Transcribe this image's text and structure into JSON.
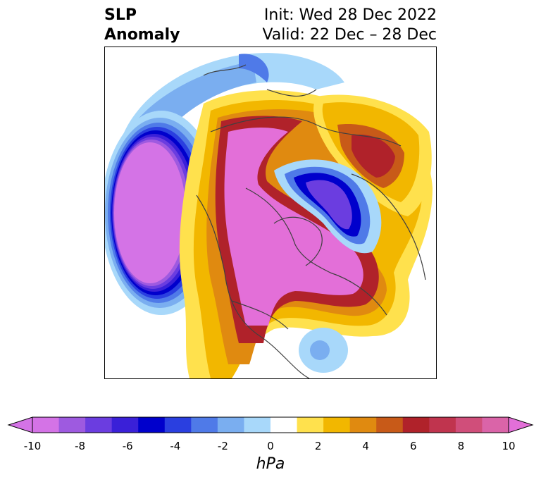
{
  "title": {
    "left_line1": "SLP",
    "left_line2": "Anomaly",
    "right_line1": "Init: Wed 28 Dec 2022",
    "right_line2": "Valid: 22 Dec – 28 Dec"
  },
  "colorbar": {
    "units": "hPa",
    "ticks": [
      "-10",
      "-8",
      "-6",
      "-4",
      "-2",
      "0",
      "2",
      "4",
      "6",
      "8",
      "10"
    ],
    "colors": [
      "#d473e6",
      "#9e5ae0",
      "#6b3de0",
      "#3a20d8",
      "#0000cc",
      "#2a3fe0",
      "#4f7ae8",
      "#7aaef0",
      "#a8d8fa",
      "#ffffff",
      "#ffe14d",
      "#f2b700",
      "#e08a10",
      "#c85a18",
      "#b0222a",
      "#c0344e",
      "#d04e7a",
      "#da64a8"
    ],
    "extend_low": "#d473e6",
    "extend_high": "#e36fd8"
  },
  "map": {
    "projection": "north polar stereographic",
    "field": "sea level pressure anomaly"
  }
}
